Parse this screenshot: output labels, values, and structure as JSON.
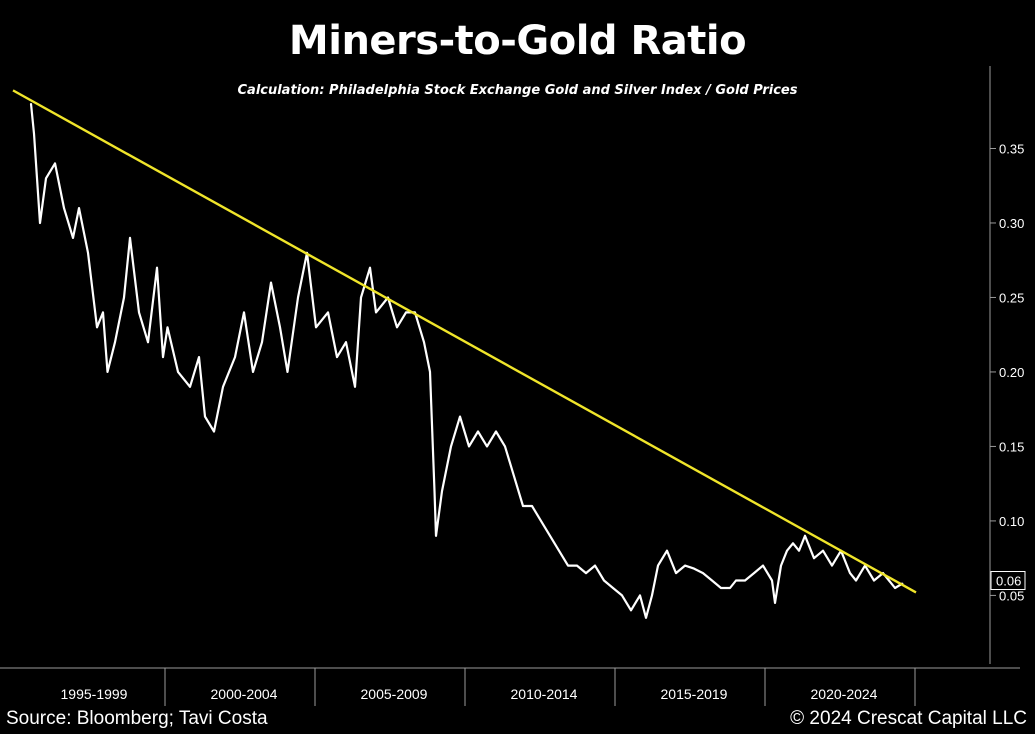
{
  "chart_data": {
    "type": "line",
    "title": "Miners-to-Gold Ratio",
    "subtitle": "Calculation: Philadelphia Stock Exchange Gold and Silver Index / Gold Prices",
    "xlabel": "",
    "ylabel": "",
    "ylim": [
      0.01,
      0.4
    ],
    "xlim": [
      1994.9,
      2024.7
    ],
    "x_categories": [
      "1995-1999",
      "2000-2004",
      "2005-2009",
      "2010-2014",
      "2015-2019",
      "2020-2024"
    ],
    "y_ticks": [
      "0.05",
      "0.10",
      "0.15",
      "0.20",
      "0.25",
      "0.30",
      "0.35"
    ],
    "last_value_label": "0.06",
    "grid": false,
    "series": [
      {
        "color": "#ffffff",
        "x": [
          1995.4,
          1995.5,
          1995.7,
          1995.9,
          1996.2,
          1996.5,
          1996.8,
          1997.0,
          1997.3,
          1997.6,
          1997.8,
          1997.95,
          1998.2,
          1998.5,
          1998.7,
          1999.0,
          1999.3,
          1999.6,
          1999.8,
          1999.95,
          2000.3,
          2000.7,
          2001.0,
          2001.2,
          2001.5,
          2001.8,
          2002.2,
          2002.5,
          2002.8,
          2003.1,
          2003.4,
          2003.7,
          2003.95,
          2004.3,
          2004.6,
          2004.9,
          2005.3,
          2005.6,
          2005.9,
          2006.2,
          2006.4,
          2006.7,
          2006.9,
          2007.3,
          2007.6,
          2007.9,
          2008.2,
          2008.5,
          2008.7,
          2008.85,
          2008.9,
          2009.1,
          2009.4,
          2009.7,
          2010.0,
          2010.3,
          2010.6,
          2010.9,
          2011.2,
          2011.5,
          2011.8,
          2012.1,
          2012.4,
          2012.7,
          2013.0,
          2013.3,
          2013.6,
          2013.9,
          2014.2,
          2014.5,
          2014.8,
          2015.1,
          2015.4,
          2015.7,
          2015.9,
          2016.1,
          2016.3,
          2016.6,
          2016.9,
          2017.2,
          2017.5,
          2017.8,
          2018.1,
          2018.4,
          2018.7,
          2018.9,
          2019.2,
          2019.5,
          2019.8,
          2020.1,
          2020.2,
          2020.4,
          2020.6,
          2020.8,
          2021.0,
          2021.2,
          2021.5,
          2021.8,
          2022.1,
          2022.4,
          2022.7,
          2022.9,
          2023.2,
          2023.5,
          2023.8,
          2024.0,
          2024.2,
          2024.45
        ],
        "y": [
          0.38,
          0.36,
          0.3,
          0.33,
          0.34,
          0.31,
          0.29,
          0.31,
          0.28,
          0.23,
          0.24,
          0.2,
          0.22,
          0.25,
          0.29,
          0.24,
          0.22,
          0.27,
          0.21,
          0.23,
          0.2,
          0.19,
          0.21,
          0.17,
          0.16,
          0.19,
          0.21,
          0.24,
          0.2,
          0.22,
          0.26,
          0.23,
          0.2,
          0.25,
          0.28,
          0.23,
          0.24,
          0.21,
          0.22,
          0.19,
          0.25,
          0.27,
          0.24,
          0.25,
          0.23,
          0.24,
          0.24,
          0.22,
          0.2,
          0.12,
          0.09,
          0.12,
          0.15,
          0.17,
          0.15,
          0.16,
          0.15,
          0.16,
          0.15,
          0.13,
          0.11,
          0.11,
          0.1,
          0.09,
          0.08,
          0.07,
          0.07,
          0.065,
          0.07,
          0.06,
          0.055,
          0.05,
          0.04,
          0.05,
          0.035,
          0.05,
          0.07,
          0.08,
          0.065,
          0.07,
          0.068,
          0.065,
          0.06,
          0.055,
          0.055,
          0.06,
          0.06,
          0.065,
          0.07,
          0.06,
          0.045,
          0.07,
          0.08,
          0.085,
          0.08,
          0.09,
          0.075,
          0.08,
          0.07,
          0.08,
          0.065,
          0.06,
          0.07,
          0.06,
          0.065,
          0.06,
          0.055,
          0.058
        ]
      }
    ],
    "trendline": {
      "color": "#f0e52a",
      "x": [
        1994.8,
        2024.9
      ],
      "y": [
        0.389,
        0.052
      ]
    }
  },
  "footer": {
    "source": "Source: Bloomberg; Tavi Costa",
    "copyright": "© 2024 Crescat Capital LLC"
  }
}
